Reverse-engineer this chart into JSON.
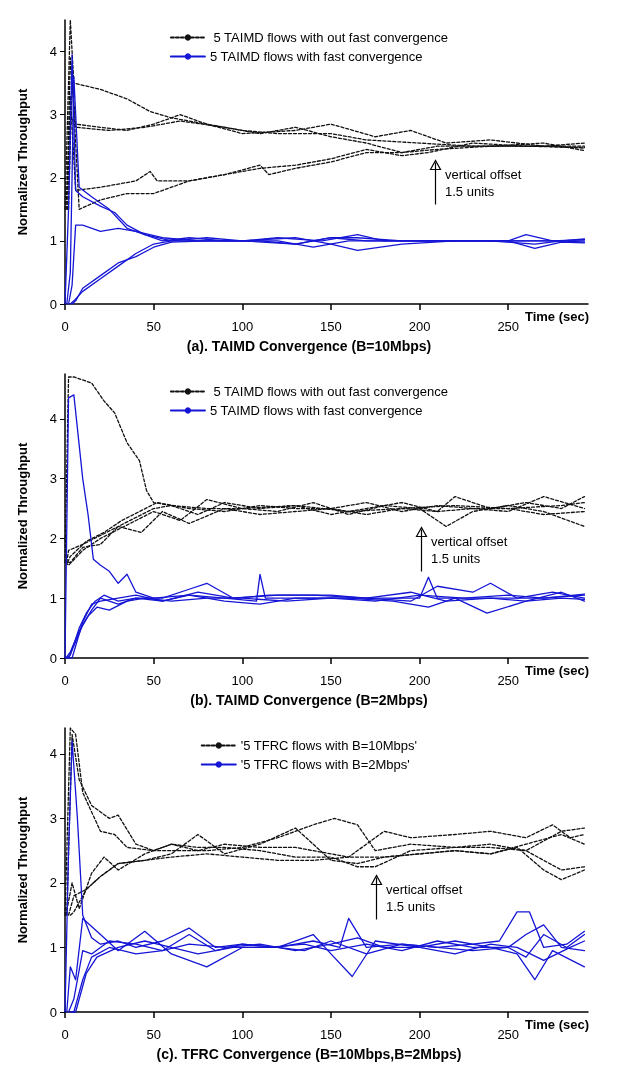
{
  "chart_data": [
    {
      "type": "line",
      "title": "(a). TAIMD Convergence (B=10Mbps)",
      "xlabel": "Time (sec)",
      "ylabel": "Normalized Throughput",
      "xlim": [
        0,
        295
      ],
      "ylim": [
        0,
        4.5
      ],
      "xticks": [
        0,
        50,
        100,
        150,
        200,
        250
      ],
      "yticks": [
        0,
        1,
        2,
        3,
        4
      ],
      "grid": false,
      "legend": "top",
      "marker": "none",
      "annotations": [
        "vertical offset\n1.5 units"
      ],
      "series": [
        {
          "name": " 5 TAIMD flows with out fast convergence",
          "color": "#111111",
          "line_style": "dashed",
          "x": [
            0,
            3,
            5,
            20,
            35,
            48,
            60,
            80,
            100,
            120,
            150,
            170,
            200,
            230,
            260,
            293
          ],
          "values": [
            1.5,
            4.5,
            3.5,
            3.4,
            3.25,
            3.05,
            2.95,
            2.85,
            2.75,
            2.7,
            2.7,
            2.6,
            2.55,
            2.5,
            2.5,
            2.5
          ]
        },
        {
          "color": "#111111",
          "line_style": "dashed",
          "x": [
            1,
            3,
            6,
            20,
            35,
            50,
            65,
            80,
            100,
            130,
            150,
            175,
            195,
            215,
            240,
            270,
            293
          ],
          "values": [
            1.5,
            3.9,
            2.85,
            2.8,
            2.75,
            2.85,
            3.0,
            2.85,
            2.7,
            2.75,
            2.85,
            2.65,
            2.75,
            2.55,
            2.6,
            2.5,
            2.55
          ]
        },
        {
          "color": "#111111",
          "line_style": "dashed",
          "x": [
            0.5,
            3,
            6,
            25,
            45,
            65,
            90,
            110,
            130,
            150,
            170,
            190,
            210,
            240,
            270,
            293
          ],
          "values": [
            1.5,
            3.0,
            2.8,
            2.75,
            2.8,
            2.9,
            2.8,
            2.7,
            2.8,
            2.65,
            2.55,
            2.4,
            2.5,
            2.5,
            2.55,
            2.43
          ]
        },
        {
          "color": "#111111",
          "line_style": "dashed",
          "x": [
            1.5,
            3,
            6,
            20,
            40,
            48,
            52,
            70,
            90,
            110,
            115,
            130,
            150,
            170,
            190,
            210,
            240,
            270,
            293
          ],
          "values": [
            1.5,
            3.3,
            1.8,
            1.85,
            1.95,
            2.1,
            1.95,
            1.95,
            2.05,
            2.2,
            2.05,
            2.15,
            2.25,
            2.4,
            2.4,
            2.45,
            2.5,
            2.5,
            2.47
          ]
        },
        {
          "color": "#111111",
          "line_style": "dashed",
          "x": [
            2,
            4,
            8,
            20,
            35,
            50,
            70,
            90,
            110,
            130,
            150,
            170,
            190,
            205,
            230,
            260,
            293
          ],
          "values": [
            1.5,
            3.6,
            1.5,
            1.65,
            1.75,
            1.75,
            1.95,
            2.05,
            2.15,
            2.2,
            2.3,
            2.45,
            2.35,
            2.4,
            2.55,
            2.5,
            2.48
          ]
        },
        {
          "name": "5 TAIMD flows with fast convergence",
          "color": "#1515d6",
          "line_style": "solid",
          "x": [
            0,
            2,
            4,
            6,
            10,
            20,
            28,
            35,
            45,
            55,
            70,
            90,
            110,
            130,
            150,
            170,
            190,
            210,
            230,
            250,
            270,
            293
          ],
          "values": [
            0,
            1.5,
            3.95,
            1.8,
            1.7,
            1.55,
            1.45,
            1.25,
            1.1,
            1.0,
            1.05,
            1.0,
            1.0,
            0.95,
            1.05,
            1.0,
            1.0,
            1.0,
            1.0,
            1.0,
            1.0,
            1.0
          ]
        },
        {
          "color": "#1515d6",
          "line_style": "solid",
          "x": [
            1,
            3,
            5,
            8,
            15,
            25,
            35,
            45,
            60,
            80,
            100,
            130,
            150,
            165,
            190,
            220,
            250,
            260,
            275,
            293
          ],
          "values": [
            0,
            0.5,
            3.6,
            1.85,
            1.7,
            1.5,
            1.2,
            1.1,
            1.0,
            1.0,
            1.0,
            0.95,
            1.05,
            1.05,
            1.0,
            1.0,
            1.0,
            1.1,
            1.0,
            1.02
          ]
        },
        {
          "color": "#1515d6",
          "line_style": "solid",
          "x": [
            2,
            4,
            6,
            10,
            20,
            30,
            40,
            55,
            75,
            100,
            120,
            145,
            165,
            180,
            210,
            240,
            265,
            280,
            293
          ],
          "values": [
            0,
            0.3,
            1.25,
            1.25,
            1.15,
            1.2,
            1.15,
            1.05,
            1.0,
            1.0,
            1.05,
            1.0,
            1.1,
            1.0,
            1.0,
            1.0,
            0.95,
            1.0,
            0.98
          ]
        },
        {
          "color": "#1515d6",
          "line_style": "solid",
          "x": [
            3,
            5,
            10,
            20,
            30,
            40,
            50,
            60,
            80,
            100,
            120,
            140,
            160,
            175,
            200,
            230,
            260,
            280,
            293
          ],
          "values": [
            0,
            0.05,
            0.2,
            0.4,
            0.6,
            0.8,
            0.95,
            1.0,
            1.05,
            1.0,
            1.0,
            0.9,
            1.0,
            1.0,
            1.0,
            1.0,
            1.0,
            1.0,
            1.03
          ]
        },
        {
          "color": "#1515d6",
          "line_style": "solid",
          "x": [
            4,
            6,
            10,
            20,
            30,
            40,
            50,
            60,
            80,
            100,
            130,
            150,
            165,
            190,
            220,
            250,
            265,
            280,
            293
          ],
          "values": [
            0,
            0.05,
            0.25,
            0.45,
            0.65,
            0.75,
            0.9,
            0.98,
            1.0,
            1.0,
            1.05,
            0.95,
            0.85,
            0.95,
            1.0,
            1.0,
            0.88,
            0.98,
            0.97
          ]
        }
      ]
    },
    {
      "type": "line",
      "title": "(b). TAIMD Convergence (B=2Mbps)",
      "xlabel": "Time (sec)",
      "ylabel": "Normalized Throughput",
      "xlim": [
        0,
        295
      ],
      "ylim": [
        0,
        4.75
      ],
      "xticks": [
        0,
        50,
        100,
        150,
        200,
        250
      ],
      "yticks": [
        0,
        1,
        2,
        3,
        4
      ],
      "grid": false,
      "legend": "top",
      "marker": "none",
      "annotations": [
        "vertical offset\n1.5 units"
      ],
      "series": [
        {
          "name": " 5 TAIMD flows with out fast convergence",
          "color": "#111111",
          "line_style": "dashed",
          "x": [
            0,
            2,
            5,
            15,
            22,
            28,
            35,
            42,
            46,
            50,
            60,
            80,
            100,
            130,
            160,
            190,
            220,
            250,
            280,
            293
          ],
          "values": [
            1.6,
            4.7,
            4.7,
            4.6,
            4.3,
            4.1,
            3.6,
            3.3,
            2.8,
            2.6,
            2.55,
            2.5,
            2.5,
            2.55,
            2.45,
            2.5,
            2.55,
            2.5,
            2.55,
            2.6
          ]
        },
        {
          "color": "#111111",
          "line_style": "dashed",
          "x": [
            1,
            2,
            10,
            20,
            30,
            40,
            50,
            60,
            75,
            90,
            110,
            130,
            150,
            170,
            190,
            210,
            220,
            240,
            260,
            280,
            293
          ],
          "values": [
            1.6,
            1.8,
            1.9,
            2.05,
            2.2,
            2.35,
            2.5,
            2.55,
            2.4,
            2.6,
            2.5,
            2.55,
            2.4,
            2.5,
            2.6,
            2.45,
            2.7,
            2.5,
            2.6,
            2.5,
            2.7
          ]
        },
        {
          "color": "#111111",
          "line_style": "dashed",
          "x": [
            0.5,
            2,
            10,
            20,
            30,
            40,
            50,
            65,
            80,
            100,
            120,
            140,
            160,
            180,
            200,
            215,
            230,
            250,
            270,
            293
          ],
          "values": [
            1.6,
            1.55,
            1.8,
            2.0,
            2.15,
            2.3,
            2.45,
            2.3,
            2.65,
            2.5,
            2.45,
            2.6,
            2.4,
            2.55,
            2.5,
            2.2,
            2.45,
            2.55,
            2.45,
            2.2
          ]
        },
        {
          "color": "#111111",
          "line_style": "dashed",
          "x": [
            1.5,
            3,
            12,
            22,
            32,
            42,
            52,
            70,
            90,
            110,
            130,
            150,
            170,
            190,
            210,
            230,
            250,
            270,
            293
          ],
          "values": [
            1.6,
            1.7,
            1.95,
            2.1,
            2.3,
            2.45,
            2.6,
            2.5,
            2.45,
            2.55,
            2.5,
            2.5,
            2.6,
            2.45,
            2.55,
            2.5,
            2.45,
            2.7,
            2.5
          ]
        },
        {
          "color": "#111111",
          "line_style": "dashed",
          "x": [
            2,
            3,
            10,
            20,
            30,
            43,
            55,
            70,
            90,
            110,
            130,
            150,
            170,
            190,
            210,
            230,
            250,
            270,
            293
          ],
          "values": [
            1.6,
            1.6,
            1.85,
            1.9,
            2.2,
            2.1,
            2.45,
            2.25,
            2.5,
            2.4,
            2.45,
            2.5,
            2.4,
            2.5,
            2.45,
            2.5,
            2.5,
            2.4,
            2.45
          ]
        },
        {
          "name": "5 TAIMD flows with fast convergence",
          "color": "#1515d6",
          "line_style": "solid",
          "x": [
            0,
            2,
            5,
            10,
            13,
            16,
            20,
            25,
            30,
            35,
            40,
            50,
            70,
            90,
            108,
            110,
            113,
            130,
            160,
            200,
            205,
            210,
            240,
            270,
            293
          ],
          "values": [
            0,
            4.35,
            4.4,
            3.0,
            2.4,
            1.65,
            1.55,
            1.45,
            1.25,
            1.4,
            1.1,
            1.0,
            1.05,
            1.0,
            0.95,
            1.4,
            1.0,
            1.0,
            1.0,
            1.0,
            1.35,
            1.0,
            1.0,
            1.0,
            1.05
          ]
        },
        {
          "color": "#1515d6",
          "line_style": "solid",
          "x": [
            1,
            3,
            8,
            12,
            17,
            22,
            30,
            40,
            55,
            70,
            80,
            95,
            120,
            150,
            170,
            195,
            210,
            230,
            240,
            255,
            275,
            293
          ],
          "values": [
            0,
            0.05,
            0.5,
            0.75,
            0.95,
            1.05,
            0.95,
            1.0,
            1.0,
            1.15,
            1.25,
            1.0,
            1.05,
            1.05,
            1.0,
            0.95,
            1.2,
            1.1,
            1.25,
            1.0,
            1.1,
            1.0
          ]
        },
        {
          "color": "#1515d6",
          "line_style": "solid",
          "x": [
            2,
            5,
            10,
            15,
            20,
            30,
            40,
            55,
            70,
            90,
            110,
            130,
            160,
            185,
            205,
            220,
            238,
            260,
            280,
            293
          ],
          "values": [
            0,
            0.2,
            0.55,
            0.8,
            1.0,
            0.9,
            1.0,
            0.95,
            1.05,
            0.95,
            0.9,
            1.0,
            1.0,
            0.95,
            0.85,
            1.0,
            0.75,
            0.95,
            1.0,
            0.98
          ]
        },
        {
          "color": "#1515d6",
          "line_style": "solid",
          "x": [
            1.5,
            4,
            10,
            15,
            20,
            30,
            40,
            55,
            75,
            95,
            115,
            140,
            170,
            195,
            215,
            240,
            260,
            280,
            293
          ],
          "values": [
            0,
            0,
            0.6,
            0.9,
            0.95,
            1.0,
            1.05,
            0.95,
            1.1,
            1.0,
            1.05,
            1.05,
            1.0,
            1.1,
            0.95,
            1.0,
            0.95,
            1.1,
            0.95
          ]
        },
        {
          "color": "#1515d6",
          "line_style": "solid",
          "x": [
            0.5,
            3,
            8,
            13,
            18,
            25,
            35,
            45,
            60,
            80,
            100,
            125,
            150,
            175,
            200,
            225,
            250,
            270,
            293
          ],
          "values": [
            0,
            0.1,
            0.45,
            0.7,
            0.85,
            0.8,
            0.95,
            1.0,
            0.95,
            1.0,
            1.0,
            0.95,
            1.0,
            0.95,
            1.05,
            1.0,
            1.05,
            1.0,
            1.07
          ]
        }
      ]
    },
    {
      "type": "line",
      "title": "(c). TFRC Convergence (B=10Mbps,B=2Mbps)",
      "xlabel": "Time (sec)",
      "ylabel": "Normalized Throughput",
      "xlim": [
        0,
        295
      ],
      "ylim": [
        0,
        4.4
      ],
      "xticks": [
        0,
        50,
        100,
        150,
        200,
        250
      ],
      "yticks": [
        0,
        1,
        2,
        3,
        4
      ],
      "grid": false,
      "legend": "top",
      "marker": "none",
      "annotations": [
        "vertical offset\n1.5 units"
      ],
      "series": [
        {
          "name": "'5 TFRC flows with B=10Mbps'",
          "color": "#111111",
          "line_style": "dashed",
          "x": [
            0,
            3,
            6,
            10,
            15,
            20,
            28,
            35,
            50,
            65,
            80,
            100,
            120,
            140,
            152,
            165,
            175,
            195,
            220,
            240,
            260,
            280,
            293
          ],
          "values": [
            1.5,
            4.4,
            4.3,
            3.4,
            3.1,
            2.8,
            2.75,
            2.55,
            2.5,
            2.5,
            2.5,
            2.55,
            2.7,
            2.9,
            3.0,
            2.9,
            2.5,
            2.6,
            2.55,
            2.6,
            2.5,
            2.8,
            2.85
          ]
        },
        {
          "color": "#111111",
          "line_style": "dashed",
          "x": [
            1,
            4,
            8,
            15,
            25,
            30,
            40,
            50,
            60,
            75,
            90,
            110,
            130,
            150,
            165,
            175,
            195,
            220,
            240,
            260,
            280,
            293
          ],
          "values": [
            1.5,
            4.3,
            3.6,
            3.2,
            3.0,
            3.05,
            2.6,
            2.5,
            2.6,
            2.55,
            2.55,
            2.5,
            2.4,
            2.4,
            2.25,
            2.25,
            2.5,
            2.55,
            2.55,
            2.5,
            2.2,
            2.25
          ]
        },
        {
          "color": "#111111",
          "line_style": "dashed",
          "x": [
            0.5,
            4,
            8,
            15,
            22,
            30,
            45,
            60,
            75,
            90,
            110,
            130,
            150,
            160,
            170,
            180,
            195,
            220,
            240,
            260,
            275,
            285,
            293
          ],
          "values": [
            1.5,
            2.0,
            1.6,
            2.15,
            2.4,
            2.2,
            2.45,
            2.6,
            2.5,
            2.6,
            2.55,
            2.55,
            2.45,
            2.4,
            2.6,
            2.8,
            2.7,
            2.75,
            2.8,
            2.7,
            2.9,
            2.7,
            2.75
          ]
        },
        {
          "color": "#111111",
          "line_style": "dashed",
          "x": [
            2,
            5,
            12,
            20,
            30,
            45,
            60,
            75,
            90,
            110,
            130,
            150,
            165,
            180,
            200,
            220,
            240,
            260,
            280,
            293
          ],
          "values": [
            1.5,
            1.8,
            1.9,
            2.1,
            2.3,
            2.35,
            2.45,
            2.75,
            2.45,
            2.6,
            2.85,
            2.35,
            2.3,
            2.4,
            2.45,
            2.5,
            2.45,
            2.6,
            2.75,
            2.6
          ]
        },
        {
          "color": "#111111",
          "line_style": "dashed",
          "x": [
            3,
            5,
            12,
            20,
            30,
            45,
            60,
            80,
            100,
            120,
            140,
            160,
            180,
            200,
            220,
            240,
            255,
            270,
            280,
            293
          ],
          "values": [
            1.5,
            1.55,
            1.9,
            2.1,
            2.3,
            2.35,
            2.4,
            2.45,
            2.4,
            2.35,
            2.35,
            2.4,
            2.4,
            2.45,
            2.5,
            2.45,
            2.55,
            2.2,
            2.05,
            2.2
          ]
        },
        {
          "name": "'5 TFRC flows with B=2Mbps'",
          "color": "#1515d6",
          "line_style": "solid",
          "x": [
            0,
            2,
            4,
            7,
            10,
            15,
            20,
            30,
            40,
            55,
            70,
            85,
            100,
            120,
            140,
            155,
            160,
            170,
            190,
            210,
            230,
            245,
            255,
            262,
            270,
            283,
            293
          ],
          "values": [
            0,
            2.5,
            4.2,
            3.0,
            1.5,
            1.15,
            1.05,
            1.1,
            1.0,
            1.1,
            1.3,
            1.0,
            1.05,
            1.0,
            1.1,
            1.0,
            1.45,
            1.0,
            1.05,
            1.0,
            1.05,
            1.1,
            1.55,
            1.55,
            1.0,
            1.05,
            1.25
          ]
        },
        {
          "color": "#1515d6",
          "line_style": "solid",
          "x": [
            1,
            3,
            6,
            10,
            20,
            30,
            45,
            60,
            80,
            100,
            120,
            140,
            150,
            162,
            175,
            200,
            220,
            240,
            255,
            265,
            275,
            293
          ],
          "values": [
            0,
            0.7,
            0.5,
            1.45,
            1.2,
            0.95,
            1.25,
            0.9,
            0.7,
            1.0,
            1.0,
            1.2,
            0.9,
            0.55,
            1.1,
            1.0,
            1.1,
            1.0,
            0.9,
            0.5,
            0.95,
            0.7
          ]
        },
        {
          "color": "#1515d6",
          "line_style": "solid",
          "x": [
            2,
            5,
            10,
            15,
            25,
            40,
            55,
            70,
            85,
            100,
            120,
            135,
            150,
            170,
            190,
            210,
            230,
            250,
            260,
            270,
            280,
            293
          ],
          "values": [
            0,
            0.2,
            0.95,
            0.9,
            1.1,
            1.05,
            0.95,
            1.2,
            0.95,
            1.05,
            1.0,
            0.95,
            1.1,
            0.9,
            1.05,
            1.0,
            0.95,
            1.0,
            1.2,
            1.35,
            1.0,
            0.95
          ]
        },
        {
          "color": "#1515d6",
          "line_style": "solid",
          "x": [
            3,
            5,
            10,
            15,
            25,
            40,
            55,
            70,
            90,
            110,
            130,
            150,
            165,
            180,
            200,
            220,
            240,
            255,
            270,
            285,
            293
          ],
          "values": [
            0,
            0,
            0.5,
            0.85,
            1.0,
            0.9,
            0.95,
            1.05,
            1.0,
            1.05,
            0.95,
            1.05,
            1.15,
            1.0,
            1.0,
            0.9,
            1.05,
            1.0,
            0.8,
            1.0,
            1.1
          ]
        },
        {
          "color": "#1515d6",
          "line_style": "solid",
          "x": [
            4,
            6,
            12,
            18,
            30,
            45,
            60,
            75,
            95,
            115,
            135,
            150,
            170,
            190,
            210,
            230,
            250,
            260,
            270,
            283,
            293
          ],
          "values": [
            0,
            0,
            0.6,
            0.85,
            1.0,
            1.1,
            1.0,
            0.9,
            1.0,
            1.0,
            1.05,
            0.95,
            1.05,
            0.95,
            1.1,
            1.0,
            1.0,
            0.85,
            1.2,
            1.0,
            1.2
          ]
        }
      ]
    }
  ]
}
